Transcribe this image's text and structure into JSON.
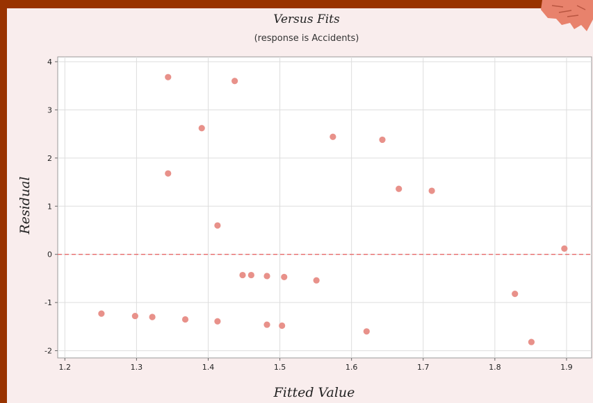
{
  "chart_data": {
    "type": "scatter",
    "title": "Versus Fits",
    "subtitle": "(response is Accidents)",
    "xlabel": "Fitted Value",
    "ylabel": "Residual",
    "xlim": [
      1.19,
      1.935
    ],
    "ylim": [
      -2.15,
      4.1
    ],
    "xticks": [
      1.2,
      1.3,
      1.4,
      1.5,
      1.6,
      1.7,
      1.8,
      1.9
    ],
    "yticks": [
      -2,
      -1,
      0,
      1,
      2,
      3,
      4
    ],
    "reference_line": {
      "y": 0,
      "style": "dashed",
      "color": "#e86a6a"
    },
    "grid": true,
    "marker_color": "#e8918a",
    "points": [
      {
        "x": 1.251,
        "y": -1.23
      },
      {
        "x": 1.298,
        "y": -1.28
      },
      {
        "x": 1.322,
        "y": -1.3
      },
      {
        "x": 1.344,
        "y": 3.68
      },
      {
        "x": 1.344,
        "y": 1.68
      },
      {
        "x": 1.368,
        "y": -1.35
      },
      {
        "x": 1.391,
        "y": 2.62
      },
      {
        "x": 1.413,
        "y": 0.6
      },
      {
        "x": 1.413,
        "y": -1.39
      },
      {
        "x": 1.437,
        "y": 3.6
      },
      {
        "x": 1.448,
        "y": -0.43
      },
      {
        "x": 1.46,
        "y": -0.43
      },
      {
        "x": 1.482,
        "y": -0.45
      },
      {
        "x": 1.482,
        "y": -1.46
      },
      {
        "x": 1.503,
        "y": -1.48
      },
      {
        "x": 1.506,
        "y": -0.47
      },
      {
        "x": 1.551,
        "y": -0.54
      },
      {
        "x": 1.574,
        "y": 2.44
      },
      {
        "x": 1.621,
        "y": -1.6
      },
      {
        "x": 1.643,
        "y": 2.38
      },
      {
        "x": 1.666,
        "y": 1.36
      },
      {
        "x": 1.712,
        "y": 1.32
      },
      {
        "x": 1.828,
        "y": -0.82
      },
      {
        "x": 1.851,
        "y": -1.82
      },
      {
        "x": 1.897,
        "y": 0.12
      }
    ]
  }
}
